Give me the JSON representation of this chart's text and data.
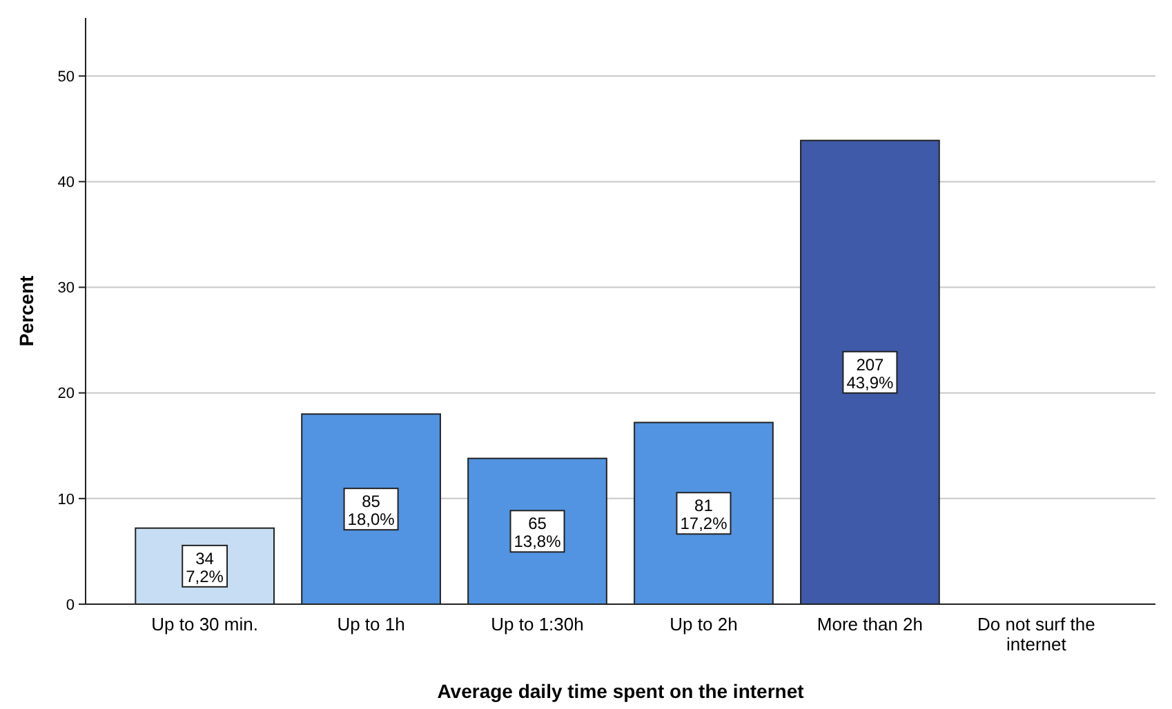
{
  "chart_data": {
    "type": "bar",
    "xlabel": "Average daily time spent on the internet",
    "ylabel": "Percent",
    "categories": [
      "Up to 30 min.",
      "Up to 1h",
      "Up to 1:30h",
      "Up to 2h",
      "More than 2h",
      "Do not surf the internet"
    ],
    "values": [
      7.2,
      18.0,
      13.8,
      17.2,
      43.9,
      0
    ],
    "colors": [
      "#c6ddf3",
      "#5294e2",
      "#5294e2",
      "#5294e2",
      "#3e5aa8",
      "#5294e2"
    ],
    "value_labels": [
      "34\n7,2%",
      "85\n18,0%",
      "65\n13,8%",
      "81\n17,2%",
      "207\n43,9%",
      null
    ],
    "ylim": [
      0,
      55.5
    ],
    "yticks": [
      0,
      10,
      20,
      30,
      40,
      50
    ],
    "grid": "y"
  }
}
